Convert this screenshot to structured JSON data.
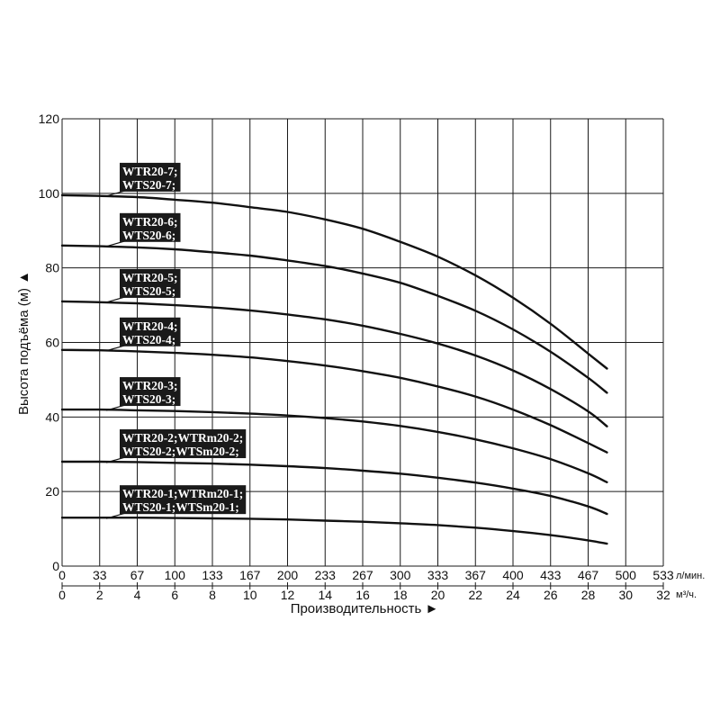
{
  "chart_data": {
    "type": "line",
    "ylabel": "Высота подъёма (м) ▲",
    "xlabel": "Производительность ►",
    "ylim": [
      0,
      120
    ],
    "y_ticks": [
      "0",
      "20",
      "40",
      "60",
      "80",
      "100",
      "120"
    ],
    "x_lpm_ticks": [
      "0",
      "33",
      "67",
      "100",
      "133",
      "167",
      "200",
      "233",
      "267",
      "300",
      "333",
      "367",
      "400",
      "433",
      "467",
      "500",
      "533"
    ],
    "x_lpm_unit": "л/мин.",
    "x_m3h_ticks": [
      "0",
      "2",
      "4",
      "6",
      "8",
      "10",
      "12",
      "14",
      "16",
      "18",
      "20",
      "22",
      "24",
      "26",
      "28",
      "30",
      "32"
    ],
    "x_m3h_unit": "м³/ч.",
    "xlim_m3h": [
      0,
      32
    ],
    "grid": true,
    "series": [
      {
        "label_lines": [
          "WTR20-7;",
          "WTS20-7;"
        ],
        "x": [
          0,
          2,
          4,
          6,
          8,
          10,
          12,
          14,
          16,
          18,
          20,
          22,
          24,
          26,
          28,
          29
        ],
        "y": [
          99.5,
          99.3,
          99,
          98.3,
          97.5,
          96.3,
          95,
          93,
          90.5,
          87,
          83,
          78,
          72,
          65,
          57,
          53
        ]
      },
      {
        "label_lines": [
          "WTR20-6;",
          "WTS20-6;"
        ],
        "x": [
          0,
          2,
          4,
          6,
          8,
          10,
          12,
          14,
          16,
          18,
          20,
          22,
          24,
          26,
          28,
          29
        ],
        "y": [
          86,
          85.8,
          85.5,
          85,
          84.2,
          83.3,
          82,
          80.5,
          78.5,
          76,
          72.5,
          68.5,
          63.5,
          57.5,
          50.5,
          46.5
        ]
      },
      {
        "label_lines": [
          "WTR20-5;",
          "WTS20-5;"
        ],
        "x": [
          0,
          2,
          4,
          6,
          8,
          10,
          12,
          14,
          16,
          18,
          20,
          22,
          24,
          26,
          28,
          29
        ],
        "y": [
          71,
          70.8,
          70.5,
          70,
          69.4,
          68.6,
          67.5,
          66.2,
          64.5,
          62.3,
          59.7,
          56.5,
          52.5,
          47.5,
          41.5,
          37.5
        ]
      },
      {
        "label_lines": [
          "WTR20-4;",
          "WTS20-4;"
        ],
        "x": [
          0,
          2,
          4,
          6,
          8,
          10,
          12,
          14,
          16,
          18,
          20,
          22,
          24,
          26,
          28,
          29
        ],
        "y": [
          58,
          57.9,
          57.6,
          57.2,
          56.7,
          56,
          55,
          53.8,
          52.3,
          50.5,
          48.2,
          45.5,
          42,
          37.8,
          33,
          30.5
        ]
      },
      {
        "label_lines": [
          "WTR20-3;",
          "WTS20-3;"
        ],
        "x": [
          0,
          2,
          4,
          6,
          8,
          10,
          12,
          14,
          16,
          18,
          20,
          22,
          24,
          26,
          28,
          29
        ],
        "y": [
          42,
          42,
          41.8,
          41.6,
          41.3,
          40.9,
          40.4,
          39.7,
          38.8,
          37.6,
          36,
          34,
          31.6,
          28.7,
          24.9,
          22.5
        ]
      },
      {
        "label_lines": [
          "WTR20-2;WTRm20-2;",
          "WTS20-2;WTSm20-2;"
        ],
        "x": [
          0,
          2,
          4,
          6,
          8,
          10,
          12,
          14,
          16,
          18,
          20,
          22,
          24,
          26,
          28,
          29
        ],
        "y": [
          28,
          28,
          27.9,
          27.7,
          27.5,
          27.2,
          26.8,
          26.3,
          25.6,
          24.8,
          23.7,
          22.4,
          20.8,
          18.8,
          16,
          14
        ]
      },
      {
        "label_lines": [
          "WTR20-1;WTRm20-1;",
          "WTS20-1;WTSm20-1;"
        ],
        "x": [
          0,
          2,
          4,
          6,
          8,
          10,
          12,
          14,
          16,
          18,
          20,
          22,
          24,
          26,
          28,
          29
        ],
        "y": [
          13,
          13,
          13,
          12.9,
          12.8,
          12.7,
          12.5,
          12.2,
          11.9,
          11.5,
          11,
          10.3,
          9.4,
          8.3,
          6.9,
          6
        ]
      }
    ]
  }
}
